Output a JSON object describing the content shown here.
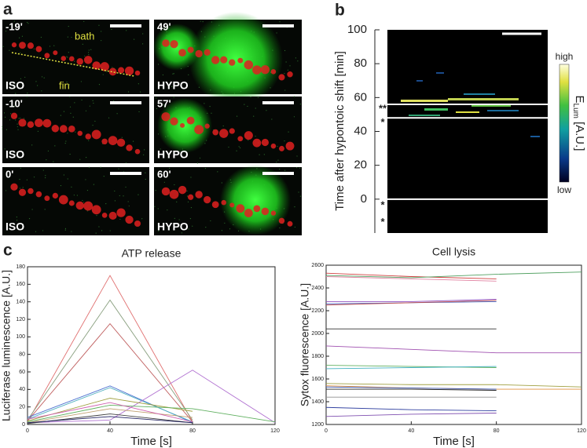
{
  "panel_a": {
    "label": "a",
    "bath": "bath",
    "fin": "fin",
    "tiles": [
      {
        "time": "-19'",
        "condition": "ISO"
      },
      {
        "time": "49'",
        "condition": "HYPO"
      },
      {
        "time": "-10'",
        "condition": "ISO"
      },
      {
        "time": "57'",
        "condition": "HYPO"
      },
      {
        "time": "0'",
        "condition": "ISO"
      },
      {
        "time": "60'",
        "condition": "HYPO"
      }
    ]
  },
  "panel_b": {
    "label": "b"
  },
  "panel_c": {
    "label": "c"
  },
  "chart_data": [
    {
      "type": "heatmap",
      "ylabel": "Time after hypontoic shift [min]",
      "ylim": [
        -20,
        100
      ],
      "yticks": [
        0,
        20,
        40,
        60,
        80,
        100
      ],
      "colorbar_high": "high",
      "colorbar_low": "low",
      "colorbar_title": "E",
      "colorbar_title_sub": "Lum",
      "colorbar_title_unit": "[A.U.]",
      "event_lines": [
        56,
        48,
        0
      ],
      "annotations": [
        {
          "text": "**",
          "y": 55
        },
        {
          "text": "*",
          "y": 47
        },
        {
          "text": "*",
          "y": -2
        },
        {
          "text": "*",
          "y": -12
        }
      ]
    },
    {
      "type": "line",
      "title": "ATP release",
      "xlabel": "Time [s]",
      "ylabel": "Luciferase luminescence [A.U.]",
      "x": [
        0,
        40,
        80,
        120
      ],
      "xlim": [
        0,
        120
      ],
      "xticks": [
        0,
        40,
        80,
        120
      ],
      "ylim": [
        0,
        180
      ],
      "yticks": [
        0,
        20,
        40,
        60,
        80,
        100,
        120,
        140,
        160,
        180
      ],
      "series": [
        {
          "color": "#e07070",
          "values": [
            3,
            170,
            3,
            null
          ]
        },
        {
          "color": "#8aa080",
          "values": [
            5,
            142,
            5,
            null
          ]
        },
        {
          "color": "#c06060",
          "values": [
            4,
            115,
            3,
            null
          ]
        },
        {
          "color": "#4a70d0",
          "values": [
            8,
            44,
            2,
            null
          ]
        },
        {
          "color": "#50b0c0",
          "values": [
            6,
            42,
            3,
            null
          ]
        },
        {
          "color": "#b070d0",
          "values": [
            2,
            5,
            62,
            2
          ]
        },
        {
          "color": "#a0a040",
          "values": [
            4,
            30,
            15,
            null
          ]
        },
        {
          "color": "#60b060",
          "values": [
            3,
            22,
            18,
            3
          ]
        },
        {
          "color": "#c0a070",
          "values": [
            2,
            18,
            8,
            null
          ]
        },
        {
          "color": "#404040",
          "values": [
            1,
            12,
            2,
            null
          ]
        },
        {
          "color": "#d060b0",
          "values": [
            6,
            25,
            3,
            null
          ]
        },
        {
          "color": "#202060",
          "values": [
            2,
            9,
            2,
            null
          ]
        }
      ]
    },
    {
      "type": "line",
      "title": "Cell lysis",
      "xlabel": "Time [s]",
      "ylabel": "Sytox fluorescence [A.U.]",
      "x": [
        0,
        40,
        80,
        120
      ],
      "xlim": [
        0,
        120
      ],
      "xticks": [
        0,
        40,
        80,
        120
      ],
      "ylim": [
        1200,
        2600
      ],
      "yticks": [
        1200,
        1400,
        1600,
        1800,
        2000,
        2200,
        2400,
        2600
      ],
      "series": [
        {
          "color": "#d04040",
          "values": [
            2530,
            2500,
            2480,
            null
          ]
        },
        {
          "color": "#50a060",
          "values": [
            2510,
            2490,
            2520,
            2540
          ]
        },
        {
          "color": "#e080a0",
          "values": [
            2500,
            2480,
            2460,
            null
          ]
        },
        {
          "color": "#9050c0",
          "values": [
            2280,
            2280,
            2300,
            null
          ]
        },
        {
          "color": "#4060c0",
          "values": [
            2260,
            2270,
            2280,
            null
          ]
        },
        {
          "color": "#c05050",
          "values": [
            2250,
            2270,
            2290,
            null
          ]
        },
        {
          "color": "#303030",
          "values": [
            2040,
            2040,
            2040,
            null
          ]
        },
        {
          "color": "#a050b0",
          "values": [
            1890,
            1860,
            1830,
            1830
          ]
        },
        {
          "color": "#60b060",
          "values": [
            1720,
            1710,
            1700,
            null
          ]
        },
        {
          "color": "#40b0c0",
          "values": [
            1690,
            1700,
            1710,
            null
          ]
        },
        {
          "color": "#a0a040",
          "values": [
            1560,
            1550,
            1550,
            1530
          ]
        },
        {
          "color": "#e09040",
          "values": [
            1540,
            1520,
            1510,
            1510
          ]
        },
        {
          "color": "#3050b0",
          "values": [
            1530,
            1520,
            1510,
            null
          ]
        },
        {
          "color": "#202020",
          "values": [
            1510,
            1510,
            1500,
            null
          ]
        },
        {
          "color": "#909090",
          "values": [
            1440,
            1440,
            1440,
            null
          ]
        },
        {
          "color": "#3040a0",
          "values": [
            1350,
            1330,
            1320,
            null
          ]
        },
        {
          "color": "#8050b0",
          "values": [
            1270,
            1290,
            1300,
            null
          ]
        }
      ]
    }
  ]
}
